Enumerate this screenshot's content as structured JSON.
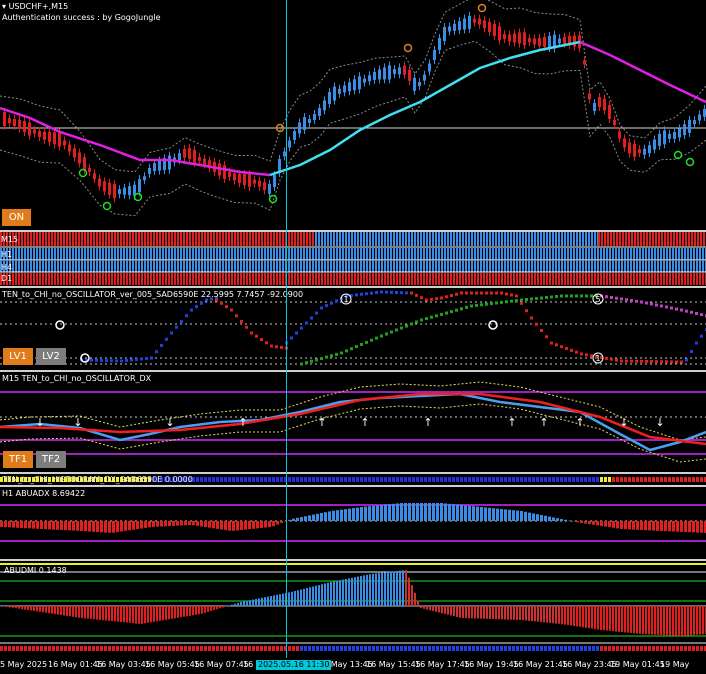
{
  "chart": {
    "symbol_title": "USDCHF+,M15",
    "auth_text": "Authentication success : by GogoJungle",
    "on_button": "ON",
    "timeframe_rows": [
      "M15",
      "H1",
      "H4",
      "D1"
    ],
    "colors": {
      "bull": "#3a8ee6",
      "bear": "#e02020",
      "ma_fast": "#e020e0",
      "ma_slow": "#40e0f0",
      "bg": "#000000"
    }
  },
  "osc1": {
    "title": "TEN_to_CHI_no_OSCILLATOR_ver_005_SAD6590E 22.5995 7.7457 -92.0900",
    "lv1": "LV1",
    "lv2": "LV2",
    "markers": [
      "1",
      "1",
      "5",
      "1"
    ]
  },
  "osc2": {
    "title": "M15 TEN_to_CHI_no_OSCILLATOR_DX",
    "tf1": "TF1",
    "tf2": "TF2"
  },
  "histo": {
    "title": "TEN_to_CHI_HISTOGRAM_DX_SAD6590E 0.0000"
  },
  "abuadx": {
    "title": "H1 ABUADX  8.69422"
  },
  "abudmi": {
    "title": "ABUDMI  0.1438"
  },
  "time_axis": {
    "ticks": [
      "5 May 2025",
      "16 May 01:45",
      "16 May 03:45",
      "16 May 05:45",
      "16 May 07:45",
      "16 May",
      "16 May 13:45",
      "16 May 15:45",
      "16 May 17:45",
      "16 May 19:45",
      "16 May 21:45",
      "16 May 23:45",
      "19 May 01:45",
      "19 May"
    ],
    "cursor_label": "2025.05.16 11:30"
  }
}
